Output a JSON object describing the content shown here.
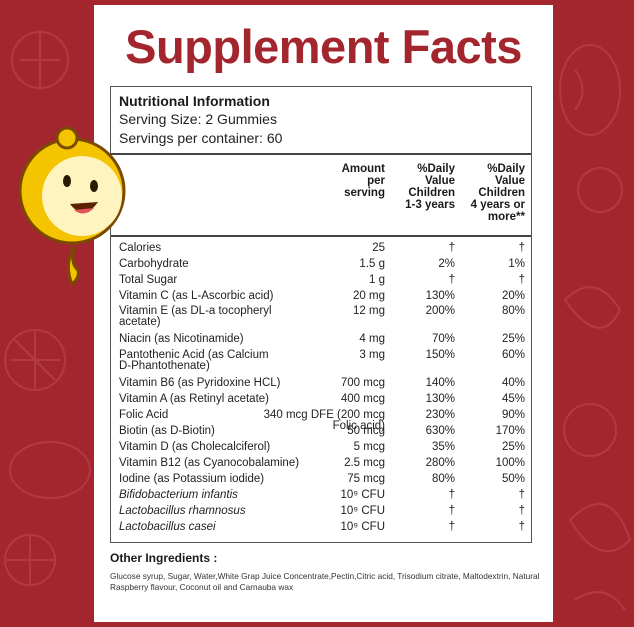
{
  "title": "Supplement Facts",
  "info": {
    "heading": "Nutritional Information",
    "serving_size": "Serving Size: 2 Gummies",
    "servings_per_container": "Servings per container: 60"
  },
  "columns": {
    "amount": [
      "Amount",
      "per",
      "serving"
    ],
    "dv_children_1_3": [
      "%Daily",
      "Value",
      "Children",
      "1-3 years"
    ],
    "dv_children_4": [
      "%Daily",
      "Value",
      "Children",
      "4 years or",
      "more**"
    ]
  },
  "nutrients": [
    {
      "name": "Calories",
      "amount": "25",
      "dv1": "†",
      "dv2": "†"
    },
    {
      "name": "Carbohydrate",
      "amount": "1.5 g",
      "dv1": "2%",
      "dv2": "1%"
    },
    {
      "name": "Total Sugar",
      "amount": "1 g",
      "dv1": "†",
      "dv2": "†"
    },
    {
      "name": "Vitamin C (as L-Ascorbic acid)",
      "amount": "20 mg",
      "dv1": "130%",
      "dv2": "20%"
    },
    {
      "name": "Vitamin E (as DL-a tocopheryl",
      "name2": "acetate)",
      "amount": "12 mg",
      "dv1": "200%",
      "dv2": "80%"
    },
    {
      "name": "Niacin (as Nicotinamide)",
      "amount": "4 mg",
      "dv1": "70%",
      "dv2": "25%"
    },
    {
      "name": "Pantothenic Acid (as Calcium",
      "name2": "D-Phantothenate)",
      "amount": "3 mg",
      "dv1": "150%",
      "dv2": "60%"
    },
    {
      "name": "Vitamin B6 (as Pyridoxine HCL)",
      "amount": "700 mcg",
      "dv1": "140%",
      "dv2": "40%"
    },
    {
      "name": "Vitamin A (as Retinyl acetate)",
      "amount": "400 mcg",
      "dv1": "130%",
      "dv2": "45%"
    },
    {
      "name": "Folic Acid",
      "amount": "340 mcg DFE (200 mcg Folic acid)",
      "dv1": "230%",
      "dv2": "90%"
    },
    {
      "name": "Biotin (as D-Biotin)",
      "amount": "50 mcg",
      "dv1": "630%",
      "dv2": "170%"
    },
    {
      "name": "Vitamin D (as Cholecalciferol)",
      "amount": "5 mcg",
      "dv1": "35%",
      "dv2": "25%"
    },
    {
      "name": "Vitamin B12 (as Cyanocobalamine)",
      "amount": "2.5 mcg",
      "dv1": "280%",
      "dv2": "100%"
    },
    {
      "name": "Iodine (as Potassium iodide)",
      "amount": "75 mcg",
      "dv1": "80%",
      "dv2": "50%"
    },
    {
      "name": "Bifidobacterium infantis",
      "amount": "10⁹ CFU",
      "dv1": "†",
      "dv2": "†",
      "italic": true
    },
    {
      "name": "Lactobacillus rhamnosus",
      "amount": "10⁹ CFU",
      "dv1": "†",
      "dv2": "†",
      "italic": true
    },
    {
      "name": "Lactobacillus casei",
      "amount": "10⁹ CFU",
      "dv1": "†",
      "dv2": "†",
      "italic": true
    }
  ],
  "other_ingredients": {
    "heading": "Other Ingredients :",
    "text": "Glucose syrup, Sugar, Water,White Grap Juice Concentrate,Pectin,Citric acid, Trisodium citrate, Maltodextrin, Natural Raspberry flavour, Coconut oil and Carnauba wax"
  },
  "colors": {
    "background": "#a3262f",
    "title": "#a3262f",
    "mascot": "#f5c400"
  },
  "icons": [
    "lemon-mascot-icon"
  ]
}
